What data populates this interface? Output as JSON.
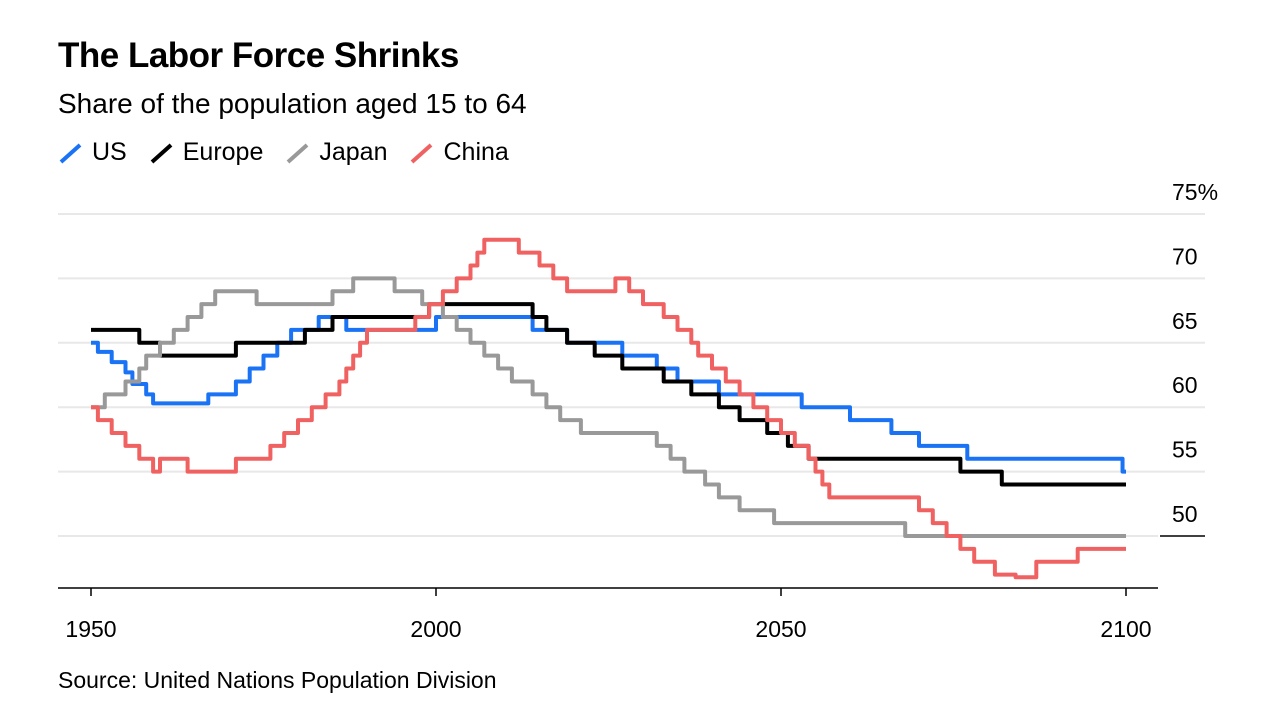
{
  "chart_data": {
    "type": "line",
    "title": "The Labor Force Shrinks",
    "subtitle": "Share of the population aged 15 to 64",
    "source": "Source: United Nations Population Division",
    "xlabel": "",
    "ylabel": "",
    "xlim": [
      1945,
      2105
    ],
    "ylim": [
      46,
      75
    ],
    "x_ticks": [
      1950,
      2000,
      2050,
      2100
    ],
    "y_ticks": [
      50,
      55,
      60,
      65,
      70,
      75
    ],
    "y_tick_labels": [
      "50",
      "55",
      "60",
      "65",
      "70",
      "75%"
    ],
    "grid": true,
    "legend_position": "top-left",
    "series": [
      {
        "name": "US",
        "color": "#1a72f5",
        "points": [
          [
            1950,
            65
          ],
          [
            1951,
            64.3
          ],
          [
            1953,
            63.5
          ],
          [
            1955,
            62.7
          ],
          [
            1956,
            61.8
          ],
          [
            1958,
            61
          ],
          [
            1959,
            60.3
          ],
          [
            1967,
            61
          ],
          [
            1971,
            62
          ],
          [
            1973,
            63
          ],
          [
            1975,
            64
          ],
          [
            1977,
            65
          ],
          [
            1979,
            66
          ],
          [
            1983,
            67
          ],
          [
            1987,
            66
          ],
          [
            2000,
            67
          ],
          [
            2014,
            66
          ],
          [
            2019,
            65
          ],
          [
            2027,
            64
          ],
          [
            2032,
            63
          ],
          [
            2035,
            62
          ],
          [
            2041,
            61
          ],
          [
            2053,
            60
          ],
          [
            2060,
            59
          ],
          [
            2066,
            58
          ],
          [
            2070,
            57
          ],
          [
            2077,
            56
          ],
          [
            2099.5,
            55
          ]
        ],
        "end": 2100
      },
      {
        "name": "Europe",
        "color": "#000000",
        "points": [
          [
            1950,
            66
          ],
          [
            1957,
            65
          ],
          [
            1960,
            64
          ],
          [
            1971,
            65
          ],
          [
            1981,
            66
          ],
          [
            1985,
            67
          ],
          [
            1999,
            68
          ],
          [
            2014,
            67
          ],
          [
            2016,
            66
          ],
          [
            2019,
            65
          ],
          [
            2023,
            64
          ],
          [
            2027,
            63
          ],
          [
            2033,
            62
          ],
          [
            2037,
            61
          ],
          [
            2041,
            60
          ],
          [
            2044,
            59
          ],
          [
            2048,
            58
          ],
          [
            2051,
            57
          ],
          [
            2054,
            56
          ],
          [
            2076,
            55
          ],
          [
            2082,
            54
          ]
        ],
        "end": 2100
      },
      {
        "name": "Japan",
        "color": "#999999",
        "points": [
          [
            1950,
            60
          ],
          [
            1952,
            61
          ],
          [
            1955,
            62
          ],
          [
            1957,
            63
          ],
          [
            1958,
            64
          ],
          [
            1960,
            65
          ],
          [
            1962,
            66
          ],
          [
            1964,
            67
          ],
          [
            1966,
            68
          ],
          [
            1968,
            69
          ],
          [
            1974,
            68
          ],
          [
            1985,
            69
          ],
          [
            1988,
            70
          ],
          [
            1994,
            69
          ],
          [
            1998,
            68
          ],
          [
            2001,
            67
          ],
          [
            2003,
            66
          ],
          [
            2005,
            65
          ],
          [
            2007,
            64
          ],
          [
            2009,
            63
          ],
          [
            2011,
            62
          ],
          [
            2014,
            61
          ],
          [
            2016,
            60
          ],
          [
            2018,
            59
          ],
          [
            2021,
            58
          ],
          [
            2032,
            57
          ],
          [
            2034,
            56
          ],
          [
            2036,
            55
          ],
          [
            2039,
            54
          ],
          [
            2041,
            53
          ],
          [
            2044,
            52
          ],
          [
            2049,
            51
          ],
          [
            2068,
            50
          ]
        ],
        "end": 2100
      },
      {
        "name": "China",
        "color": "#f06262",
        "points": [
          [
            1950,
            60
          ],
          [
            1951,
            59
          ],
          [
            1953,
            58
          ],
          [
            1955,
            57
          ],
          [
            1957,
            56
          ],
          [
            1959,
            55
          ],
          [
            1960,
            56
          ],
          [
            1964,
            55
          ],
          [
            1971,
            56
          ],
          [
            1976,
            57
          ],
          [
            1978,
            58
          ],
          [
            1980,
            59
          ],
          [
            1982,
            60
          ],
          [
            1984,
            61
          ],
          [
            1986,
            62
          ],
          [
            1987,
            63
          ],
          [
            1988,
            64
          ],
          [
            1989,
            65
          ],
          [
            1990,
            66
          ],
          [
            1997,
            67
          ],
          [
            1999,
            68
          ],
          [
            2001,
            69
          ],
          [
            2003,
            70
          ],
          [
            2005,
            71
          ],
          [
            2006,
            72
          ],
          [
            2007,
            73
          ],
          [
            2012,
            72
          ],
          [
            2015,
            71
          ],
          [
            2017,
            70
          ],
          [
            2019,
            69
          ],
          [
            2026,
            70
          ],
          [
            2028,
            69
          ],
          [
            2030,
            68
          ],
          [
            2033,
            67
          ],
          [
            2035,
            66
          ],
          [
            2037,
            65
          ],
          [
            2038,
            64
          ],
          [
            2040,
            63
          ],
          [
            2042,
            62
          ],
          [
            2044,
            61
          ],
          [
            2046,
            60
          ],
          [
            2048,
            59
          ],
          [
            2050,
            58
          ],
          [
            2052,
            57
          ],
          [
            2054,
            56
          ],
          [
            2055,
            55
          ],
          [
            2056,
            54
          ],
          [
            2057,
            53
          ],
          [
            2070,
            52
          ],
          [
            2072,
            51
          ],
          [
            2074,
            50
          ],
          [
            2076,
            49
          ],
          [
            2078,
            48
          ],
          [
            2081,
            47
          ],
          [
            2084,
            46.8
          ],
          [
            2087,
            48
          ],
          [
            2093,
            49
          ]
        ],
        "end": 2100
      }
    ]
  }
}
